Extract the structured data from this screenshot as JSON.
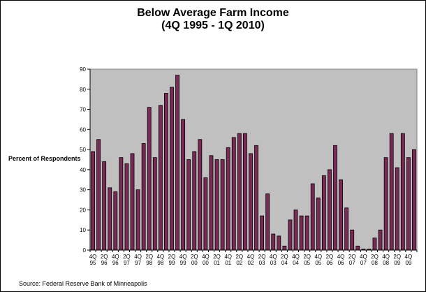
{
  "chart_data": {
    "type": "bar",
    "title": "Below Average Farm Income",
    "subtitle": "(4Q 1995 - 1Q 2010)",
    "ylabel": "Percent of Respondents",
    "xlabel": "",
    "source": "Source: Federal Reserve Bank of Minneapolis",
    "ylim": [
      0,
      90
    ],
    "yticks": [
      0,
      10,
      20,
      30,
      40,
      50,
      60,
      70,
      80,
      90
    ],
    "grid": false,
    "legend": "none",
    "colors": {
      "bar_fill": "#7a2a55",
      "bar_edge": "#000000",
      "plot_bg": "#c0c0c0"
    },
    "categories": [
      "4Q 95",
      "1Q 96",
      "2Q 96",
      "3Q 96",
      "4Q 96",
      "1Q 97",
      "2Q 97",
      "3Q 97",
      "4Q 97",
      "1Q 98",
      "2Q 98",
      "3Q 98",
      "4Q 98",
      "1Q 99",
      "2Q 99",
      "3Q 99",
      "4Q 99",
      "1Q 00",
      "2Q 00",
      "3Q 00",
      "4Q 00",
      "1Q 01",
      "2Q 01",
      "3Q 01",
      "4Q 01",
      "1Q 02",
      "2Q 02",
      "3Q 02",
      "4Q 02",
      "1Q 03",
      "2Q 03",
      "3Q 03",
      "4Q 03",
      "1Q 04",
      "2Q 04",
      "3Q 04",
      "4Q 04",
      "1Q 05",
      "2Q 05",
      "3Q 05",
      "4Q 05",
      "1Q 06",
      "2Q 06",
      "3Q 06",
      "4Q 06",
      "1Q 07",
      "2Q 07",
      "3Q 07",
      "4Q 07",
      "1Q 08",
      "2Q 08",
      "3Q 08",
      "4Q 08",
      "1Q 09",
      "2Q 09",
      "3Q 09",
      "4Q 09",
      "1Q 10"
    ],
    "values": [
      49,
      55,
      44,
      31,
      29,
      46,
      43,
      48,
      30,
      53,
      71,
      46,
      72,
      78,
      81,
      87,
      65,
      45,
      49,
      55,
      36,
      47,
      45,
      45,
      51,
      56,
      58,
      58,
      48,
      52,
      17,
      28,
      8,
      7,
      2,
      15,
      20,
      17,
      17,
      33,
      26,
      37,
      40,
      52,
      35,
      21,
      10,
      2,
      0.5,
      0.5,
      6,
      10,
      46,
      58,
      41,
      58,
      46,
      50
    ],
    "x_tick_labels": [
      {
        "top": "4Q",
        "bottom": "95"
      },
      {
        "top": "2Q",
        "bottom": "96"
      },
      {
        "top": "4Q",
        "bottom": "96"
      },
      {
        "top": "2Q",
        "bottom": "97"
      },
      {
        "top": "4Q",
        "bottom": "97"
      },
      {
        "top": "2Q",
        "bottom": "98"
      },
      {
        "top": "4Q",
        "bottom": "98"
      },
      {
        "top": "2Q",
        "bottom": "99"
      },
      {
        "top": "4Q",
        "bottom": "99"
      },
      {
        "top": "2Q",
        "bottom": "00"
      },
      {
        "top": "4Q",
        "bottom": "00"
      },
      {
        "top": "2Q",
        "bottom": "01"
      },
      {
        "top": "4Q",
        "bottom": "01"
      },
      {
        "top": "2Q",
        "bottom": "02"
      },
      {
        "top": "4Q",
        "bottom": "02"
      },
      {
        "top": "2Q",
        "bottom": "03"
      },
      {
        "top": "4Q",
        "bottom": "03"
      },
      {
        "top": "2Q",
        "bottom": "04"
      },
      {
        "top": "4Q",
        "bottom": "04"
      },
      {
        "top": "2Q",
        "bottom": "05"
      },
      {
        "top": "4Q",
        "bottom": "05"
      },
      {
        "top": "2Q",
        "bottom": "06"
      },
      {
        "top": "4Q",
        "bottom": "06"
      },
      {
        "top": "2Q",
        "bottom": "07"
      },
      {
        "top": "4Q",
        "bottom": "07"
      },
      {
        "top": "2Q",
        "bottom": "08"
      },
      {
        "top": "4Q",
        "bottom": "08"
      },
      {
        "top": "2Q",
        "bottom": "09"
      },
      {
        "top": "4Q",
        "bottom": "09"
      }
    ]
  }
}
